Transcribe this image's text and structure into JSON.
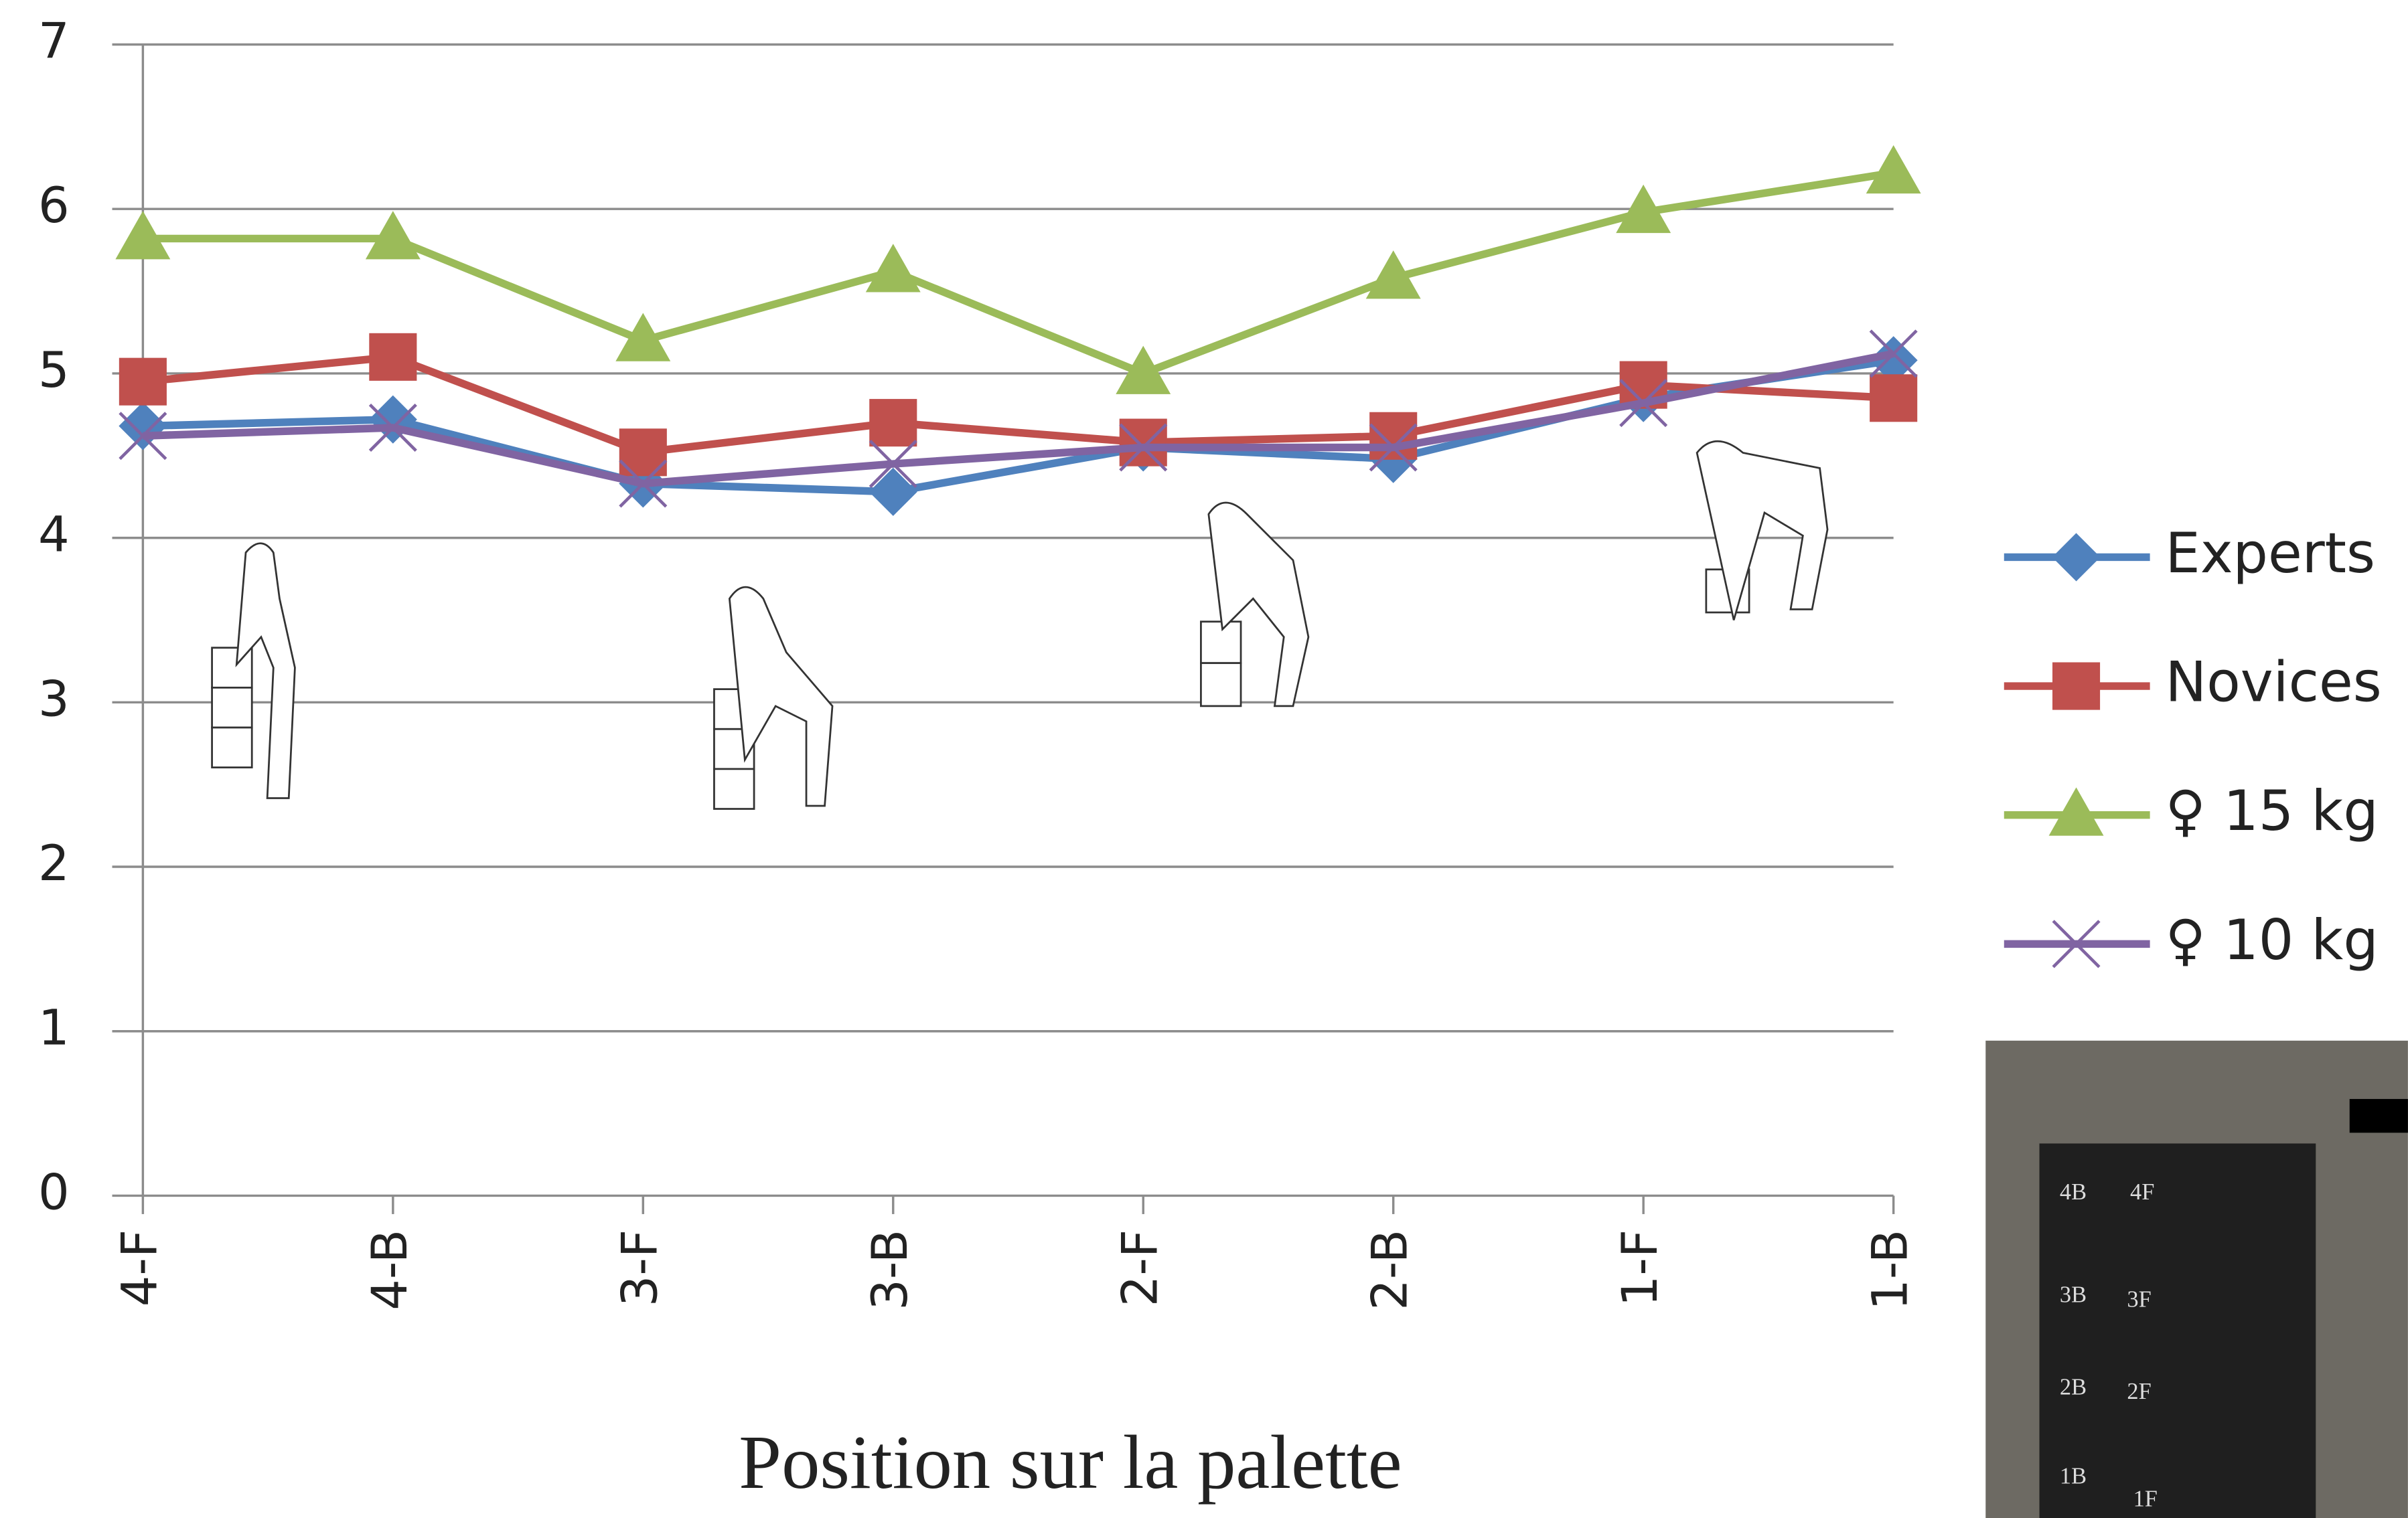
{
  "chart_data": {
    "type": "line",
    "x_label": "Position sur la palette",
    "categories": [
      "4-F",
      "4-B",
      "3-F",
      "3-B",
      "2-F",
      "2-B",
      "1-F",
      "1-B"
    ],
    "series": [
      {
        "name": "Experts",
        "color": "#4f81bd",
        "marker": "diamond",
        "values": [
          4.68,
          4.72,
          4.33,
          4.28,
          4.55,
          4.48,
          4.85,
          5.08
        ]
      },
      {
        "name": "Novices",
        "color": "#c0504d",
        "marker": "square",
        "values": [
          4.95,
          5.1,
          4.52,
          4.7,
          4.58,
          4.62,
          4.93,
          4.85
        ]
      },
      {
        "name": "♀ 15 kg",
        "color": "#9bbb59",
        "marker": "triangle",
        "values": [
          5.82,
          5.82,
          5.2,
          5.62,
          5.0,
          5.58,
          5.98,
          6.22
        ]
      },
      {
        "name": "♀ 10 kg",
        "color": "#8064a2",
        "marker": "x",
        "values": [
          4.62,
          4.67,
          4.33,
          4.45,
          4.55,
          4.55,
          4.82,
          5.12
        ]
      }
    ],
    "ylim": [
      0,
      7
    ],
    "yticks": [
      0,
      1,
      2,
      3,
      4,
      5,
      6,
      7
    ],
    "grid": true,
    "photo_labels": [
      "4B",
      "4F",
      "3B",
      "3F",
      "2B",
      "2F",
      "1B",
      "1F"
    ]
  }
}
